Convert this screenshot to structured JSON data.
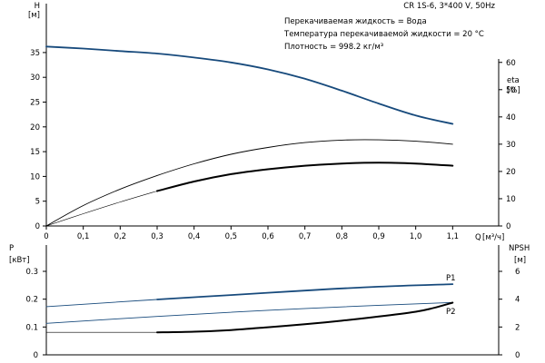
{
  "pump_model": "CR 1S-6, 3*400 V, 50Hz",
  "info_lines": [
    "Перекачиваемая жидкость = Вода",
    "Температура перекачиваемой жидкости = 20 °C",
    "Плотность = 998.2 кг/м³"
  ],
  "colors": {
    "blue": "#174a7c",
    "black": "#000000",
    "axis": "#000000",
    "grid": "#c9c9c9"
  },
  "chart_data": [
    {
      "type": "line",
      "panel": "top",
      "x_label": "Q",
      "x_unit": "[м³/ч]",
      "xlim": [
        0,
        1.2
      ],
      "x_ticks": [
        0,
        0.1,
        0.2,
        0.3,
        0.4,
        0.5,
        0.6,
        0.7,
        0.8,
        0.9,
        1.0,
        1.1
      ],
      "x_tick_labels": [
        "0",
        "0,1",
        "0,2",
        "0,3",
        "0,4",
        "0,5",
        "0,6",
        "0,7",
        "0,8",
        "0,9",
        "1,0",
        "1,1"
      ],
      "y_left": {
        "label": "H",
        "unit": "[м]",
        "lim": [
          0,
          40
        ],
        "ticks": [
          0,
          5,
          10,
          15,
          20,
          25,
          30,
          35
        ]
      },
      "y_right": {
        "label": "eta",
        "unit": "[%]",
        "lim": [
          0,
          72.7
        ],
        "ticks": [
          0,
          10,
          20,
          30,
          40,
          50,
          60
        ]
      },
      "series": [
        {
          "axis": "left",
          "color": "#174a7c",
          "width": 1.8,
          "x": [
            0,
            0.1,
            0.2,
            0.3,
            0.4,
            0.5,
            0.6,
            0.7,
            0.8,
            0.9,
            1.0,
            1.1
          ],
          "y": [
            36.2,
            35.8,
            35.3,
            34.8,
            34.0,
            33.0,
            31.6,
            29.7,
            27.3,
            24.7,
            22.3,
            20.6
          ]
        },
        {
          "axis": "right",
          "color": "#000000",
          "width": 0.9,
          "x": [
            0,
            0.1,
            0.2,
            0.3,
            0.4,
            0.5,
            0.6,
            0.7,
            0.8,
            0.9,
            1.0,
            1.1
          ],
          "y": [
            0,
            7.5,
            13.5,
            18.5,
            22.8,
            26.3,
            28.8,
            30.6,
            31.5,
            31.6,
            31.1,
            30.0
          ]
        },
        {
          "axis": "right",
          "color": "#000000",
          "width": 0.6,
          "x": [
            0,
            0.1,
            0.2,
            0.3
          ],
          "y": [
            0,
            4.5,
            8.8,
            12.8
          ]
        },
        {
          "axis": "right",
          "color": "#000000",
          "width": 2.0,
          "x": [
            0.3,
            0.4,
            0.5,
            0.6,
            0.7,
            0.8,
            0.9,
            1.0,
            1.1
          ],
          "y": [
            12.8,
            16.3,
            19.0,
            20.8,
            22.1,
            22.9,
            23.2,
            22.9,
            22.1
          ]
        }
      ]
    },
    {
      "type": "line",
      "panel": "bottom",
      "xlim": [
        0,
        1.2
      ],
      "y_left": {
        "label": "P",
        "unit": "[кВт]",
        "lim": [
          0,
          0.3
        ],
        "ticks": [
          0,
          0.1,
          0.2,
          0.3
        ],
        "tick_labels": [
          "0",
          "0.1",
          "0.2",
          "0.3"
        ]
      },
      "y_right": {
        "label": "NPSH",
        "unit": "[м]",
        "lim": [
          0,
          6
        ],
        "ticks": [
          0,
          2,
          4,
          6
        ]
      },
      "series": [
        {
          "name": "P1",
          "axis": "left",
          "color": "#174a7c",
          "width": 0.9,
          "x": [
            0,
            0.3
          ],
          "y": [
            0.173,
            0.199
          ]
        },
        {
          "name": "P1",
          "axis": "left",
          "color": "#174a7c",
          "width": 1.8,
          "x": [
            0.3,
            0.5,
            0.7,
            0.9,
            1.1
          ],
          "y": [
            0.199,
            0.215,
            0.231,
            0.245,
            0.254
          ]
        },
        {
          "name": "P2",
          "axis": "left",
          "color": "#174a7c",
          "width": 0.9,
          "x": [
            0,
            0.3,
            0.6,
            0.9,
            1.1
          ],
          "y": [
            0.113,
            0.138,
            0.16,
            0.178,
            0.188
          ]
        },
        {
          "axis": "right",
          "color": "#000000",
          "width": 0.6,
          "x": [
            0,
            0.3
          ],
          "y": [
            1.62,
            1.62
          ]
        },
        {
          "axis": "right",
          "color": "#000000",
          "width": 2.0,
          "x": [
            0.3,
            0.4,
            0.5,
            0.6,
            0.7,
            0.8,
            0.9,
            1.0,
            1.05,
            1.1
          ],
          "y": [
            1.62,
            1.66,
            1.78,
            1.98,
            2.2,
            2.45,
            2.75,
            3.1,
            3.38,
            3.75
          ]
        }
      ],
      "series_labels": [
        "P1",
        "P2"
      ]
    }
  ]
}
